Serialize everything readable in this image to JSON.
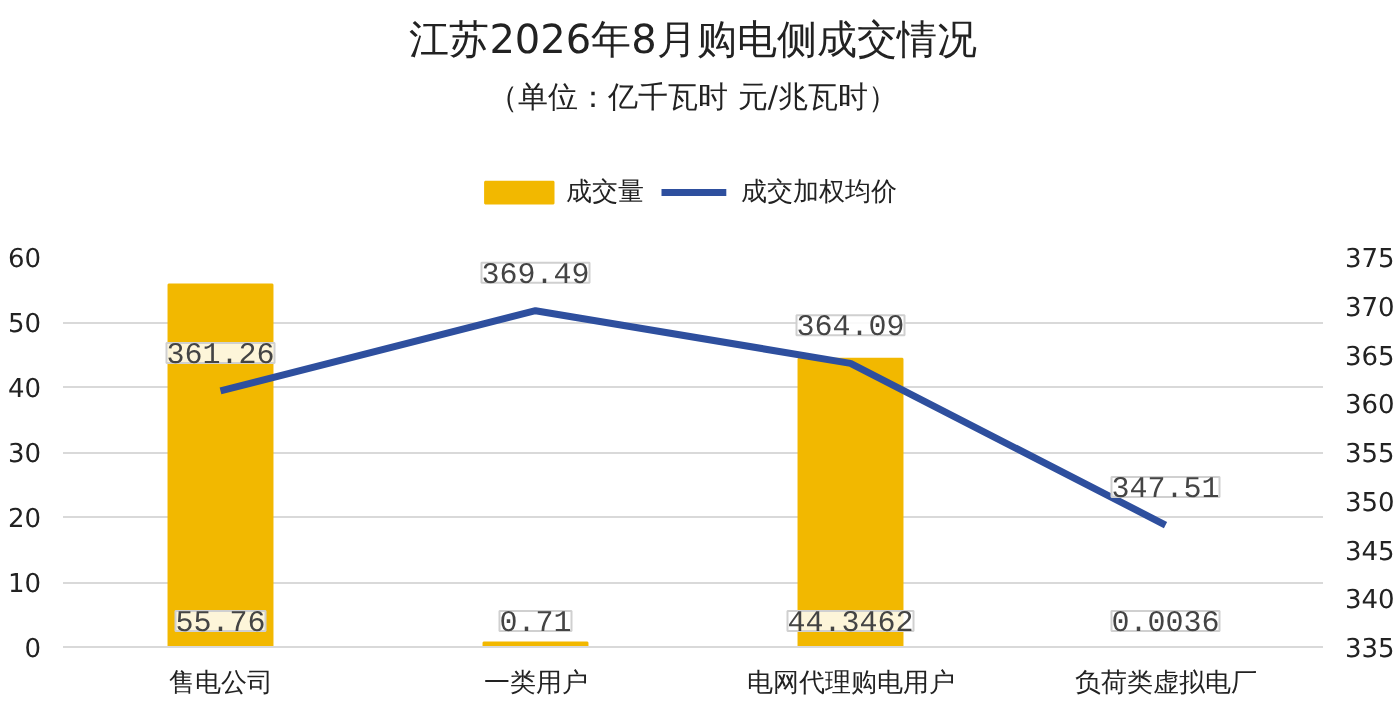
{
  "chart_data": {
    "type": "bar",
    "title": "江苏2026年8月购电侧成交情况",
    "subtitle": "（单位：亿千瓦时 元/兆瓦时）",
    "categories": [
      "售电公司",
      "一类用户",
      "电网代理购电用户",
      "负荷类虚拟电厂"
    ],
    "series": [
      {
        "name": "成交量",
        "color": "#f2b800",
        "values": [
          55.76,
          0.71,
          44.3462,
          0.0036
        ]
      },
      {
        "name": "成交加权均价",
        "color": "#2e4f9e",
        "type": "line",
        "axis": "y2",
        "values": [
          361.26,
          369.49,
          364.09,
          347.51
        ]
      }
    ],
    "ylim": [
      0,
      60
    ],
    "yticks": [
      0,
      10,
      20,
      30,
      40,
      50,
      60
    ],
    "y2lim": [
      335,
      375
    ],
    "y2ticks": [
      335,
      340,
      345,
      350,
      355,
      360,
      365,
      370,
      375
    ],
    "grid": "y",
    "legend": "top",
    "data_labels": true,
    "marker": "none"
  }
}
